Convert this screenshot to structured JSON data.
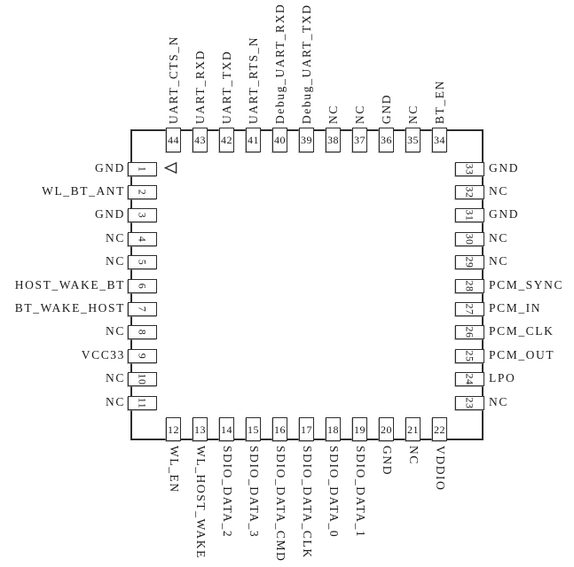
{
  "colors": {
    "line": "#2d2d2d",
    "text": "#1b1b1b",
    "background": "#ffffff"
  },
  "chip": {
    "pin1_marker_icon": "left-pointing-triangle"
  },
  "pins": {
    "top": [
      {
        "num": "44",
        "label": "UART_CTS_N"
      },
      {
        "num": "43",
        "label": "UART_RXD"
      },
      {
        "num": "42",
        "label": "UART_TXD"
      },
      {
        "num": "41",
        "label": "UART_RTS_N"
      },
      {
        "num": "40",
        "label": "Debug_UART_RXD"
      },
      {
        "num": "39",
        "label": "Debug_UART_TXD"
      },
      {
        "num": "38",
        "label": "NC"
      },
      {
        "num": "37",
        "label": "NC"
      },
      {
        "num": "36",
        "label": "GND"
      },
      {
        "num": "35",
        "label": "NC"
      },
      {
        "num": "34",
        "label": "BT_EN"
      }
    ],
    "left": [
      {
        "num": "1",
        "label": "GND"
      },
      {
        "num": "2",
        "label": "WL_BT_ANT"
      },
      {
        "num": "3",
        "label": "GND"
      },
      {
        "num": "4",
        "label": "NC"
      },
      {
        "num": "5",
        "label": "NC"
      },
      {
        "num": "6",
        "label": "HOST_WAKE_BT"
      },
      {
        "num": "7",
        "label": "BT_WAKE_HOST"
      },
      {
        "num": "8",
        "label": "NC"
      },
      {
        "num": "9",
        "label": "VCC33"
      },
      {
        "num": "10",
        "label": "NC"
      },
      {
        "num": "11",
        "label": "NC"
      }
    ],
    "right": [
      {
        "num": "33",
        "label": "GND"
      },
      {
        "num": "32",
        "label": "NC"
      },
      {
        "num": "31",
        "label": "GND"
      },
      {
        "num": "30",
        "label": "NC"
      },
      {
        "num": "29",
        "label": "NC"
      },
      {
        "num": "28",
        "label": "PCM_SYNC"
      },
      {
        "num": "27",
        "label": "PCM_IN"
      },
      {
        "num": "26",
        "label": "PCM_CLK"
      },
      {
        "num": "25",
        "label": "PCM_OUT"
      },
      {
        "num": "24",
        "label": "LPO"
      },
      {
        "num": "23",
        "label": "NC"
      }
    ],
    "bottom": [
      {
        "num": "12",
        "label": "WL_EN"
      },
      {
        "num": "13",
        "label": "WL_HOST_WAKE"
      },
      {
        "num": "14",
        "label": "SDIO_DATA_2"
      },
      {
        "num": "15",
        "label": "SDIO_DATA_3"
      },
      {
        "num": "16",
        "label": "SDIO_DATA_CMD"
      },
      {
        "num": "17",
        "label": "SDIO_DATA_CLK"
      },
      {
        "num": "18",
        "label": "SDIO_DATA_0"
      },
      {
        "num": "19",
        "label": "SDIO_DATA_1"
      },
      {
        "num": "20",
        "label": "GND"
      },
      {
        "num": "21",
        "label": "NC"
      },
      {
        "num": "22",
        "label": "VDDIO"
      }
    ]
  }
}
